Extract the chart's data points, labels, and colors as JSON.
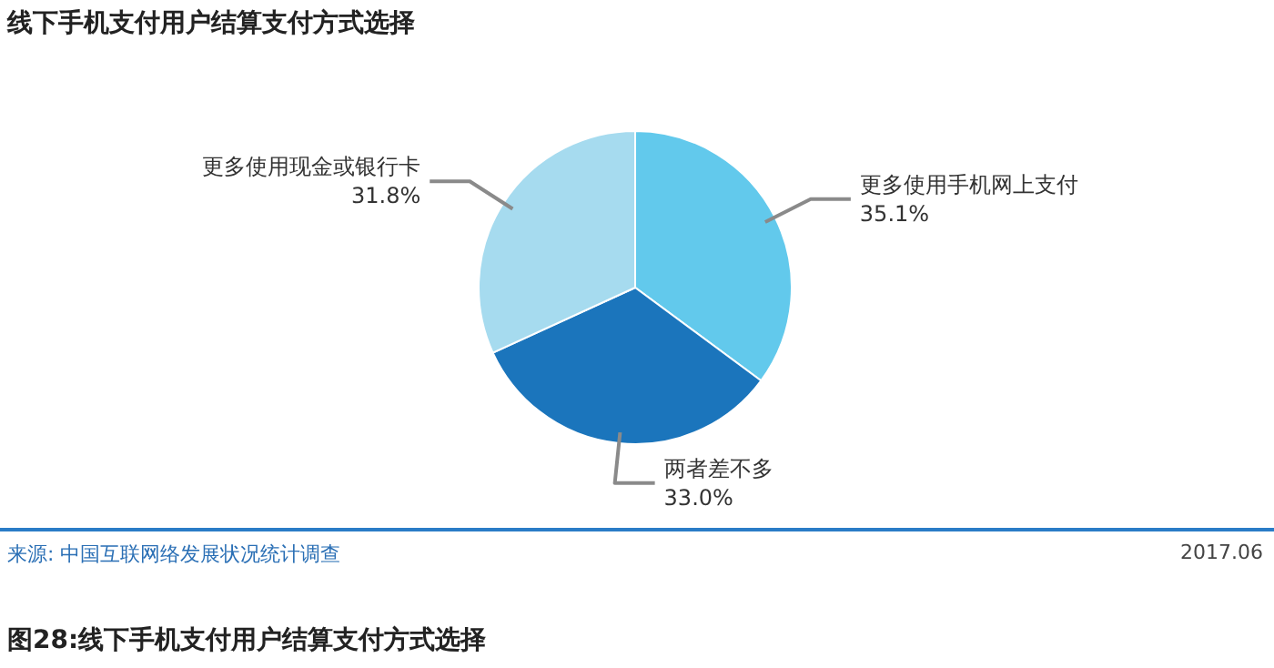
{
  "chart_data": {
    "type": "pie",
    "title": "线下手机支付用户结算支付方式选择",
    "categories": [
      "更多使用手机网上支付",
      "两者差不多",
      "更多使用现金或银行卡"
    ],
    "values": [
      35.1,
      33.0,
      31.8
    ],
    "value_labels": [
      "35.1%",
      "33.0%",
      "31.8%"
    ],
    "colors": [
      "#62c9ec",
      "#1b75bc",
      "#a6dbef"
    ],
    "annotations": [
      "来源: 中国互联网络发展状况统计调查",
      "2017.06",
      "图28:线下手机支付用户结算支付方式选择"
    ]
  }
}
